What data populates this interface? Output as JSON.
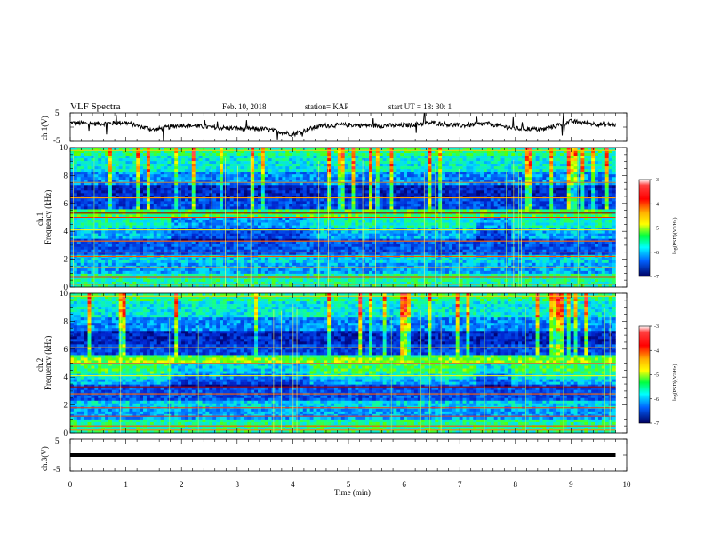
{
  "header": {
    "title": "VLF Spectra",
    "date": "Feb. 10, 2018",
    "station": "station= KAP",
    "start": "start  UT  =   18: 30: 1"
  },
  "panels": {
    "ch1_wave_label": "ch.1(V)",
    "ch1_spec_label_a": "ch.1",
    "ch1_spec_label_b": "Frequency  (kHz)",
    "ch2_spec_label_a": "ch.2",
    "ch2_spec_label_b": "Frequency  (kHz)",
    "ch3_wave_label": "ch.3(V)",
    "xlabel": "Time  (min)"
  },
  "colorbar": {
    "label": "log(PSD)(V²/Hz)",
    "ticks": [
      "-3",
      "-4",
      "-5",
      "-6",
      "-7"
    ]
  },
  "chart_data": [
    {
      "type": "line",
      "name": "ch.1 waveform",
      "ylabel": "ch.1(V)",
      "ylim": [
        -5,
        5
      ],
      "yticks": [
        "5",
        "-5"
      ],
      "xlim": [
        0,
        10
      ],
      "x": [
        0,
        0.5,
        1,
        1.5,
        2,
        2.5,
        3,
        3.5,
        4,
        4.5,
        5,
        5.5,
        6,
        6.5,
        7,
        7.5,
        8,
        8.5,
        9,
        9.5,
        9.8
      ],
      "y": [
        1.5,
        1.2,
        1.6,
        -1.0,
        0.8,
        0.0,
        -0.5,
        -0.7,
        -2.5,
        0.5,
        0.8,
        0.5,
        0.6,
        1.5,
        0.5,
        1.2,
        -0.5,
        -0.8,
        2.0,
        1.0,
        0.8
      ]
    },
    {
      "type": "heatmap",
      "name": "ch.1 spectrogram",
      "ylabel": "Frequency  (kHz)",
      "ylim": [
        0,
        10
      ],
      "yticks": [
        "0",
        "2",
        "4",
        "6",
        "8",
        "10"
      ],
      "xlim": [
        0,
        10
      ],
      "zlim": [
        -7,
        -3
      ]
    },
    {
      "type": "heatmap",
      "name": "ch.2 spectrogram",
      "ylabel": "Frequency  (kHz)",
      "ylim": [
        0,
        10
      ],
      "yticks": [
        "0",
        "2",
        "4",
        "6",
        "8",
        "10"
      ],
      "xlim": [
        0,
        10
      ],
      "zlim": [
        -7,
        -3
      ]
    },
    {
      "type": "line",
      "name": "ch.3 waveform",
      "ylabel": "ch.3(V)",
      "ylim": [
        -5,
        5
      ],
      "yticks": [
        "5",
        "-5"
      ],
      "xlim": [
        0,
        10
      ],
      "xlabel": "Time  (min)",
      "xticks": [
        "0",
        "1",
        "2",
        "3",
        "4",
        "5",
        "6",
        "7",
        "8",
        "9",
        "10"
      ],
      "x": [
        0,
        9.8
      ],
      "y": [
        0,
        0
      ]
    }
  ]
}
